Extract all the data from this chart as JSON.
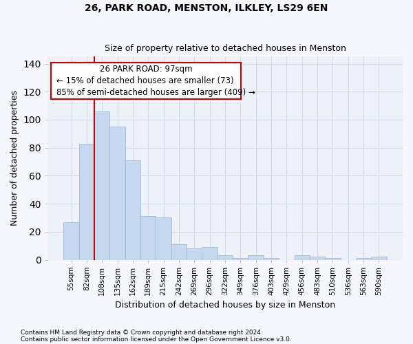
{
  "title1": "26, PARK ROAD, MENSTON, ILKLEY, LS29 6EN",
  "title2": "Size of property relative to detached houses in Menston",
  "xlabel": "Distribution of detached houses by size in Menston",
  "ylabel": "Number of detached properties",
  "categories": [
    "55sqm",
    "82sqm",
    "108sqm",
    "135sqm",
    "162sqm",
    "189sqm",
    "215sqm",
    "242sqm",
    "269sqm",
    "296sqm",
    "322sqm",
    "349sqm",
    "376sqm",
    "403sqm",
    "429sqm",
    "456sqm",
    "483sqm",
    "510sqm",
    "536sqm",
    "563sqm",
    "590sqm"
  ],
  "values": [
    27,
    83,
    106,
    95,
    71,
    31,
    30,
    11,
    8,
    9,
    3,
    1,
    3,
    1,
    0,
    3,
    2,
    1,
    0,
    1,
    2
  ],
  "bar_color": "#c5d8f0",
  "bar_edge_color": "#a0bcd8",
  "grid_color": "#d0dcea",
  "annotation_box_color": "#ffffff",
  "annotation_box_edge": "#cc0000",
  "vline_color": "#cc0000",
  "vline_x": 1.5,
  "annotation_title": "26 PARK ROAD: 97sqm",
  "annotation_line1": "← 15% of detached houses are smaller (73)",
  "annotation_line2": "85% of semi-detached houses are larger (409) →",
  "ylim": [
    0,
    145
  ],
  "yticks": [
    0,
    20,
    40,
    60,
    80,
    100,
    120,
    140
  ],
  "footnote1": "Contains HM Land Registry data © Crown copyright and database right 2024.",
  "footnote2": "Contains public sector information licensed under the Open Government Licence v3.0.",
  "bg_color": "#f5f7fc",
  "plot_bg_color": "#edf2f9"
}
